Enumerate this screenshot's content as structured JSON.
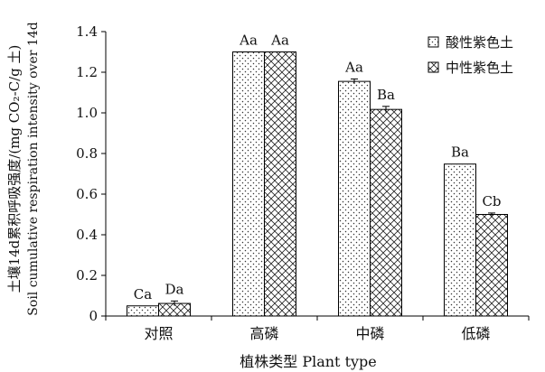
{
  "chart_data": {
    "type": "bar",
    "categories": [
      "对照",
      "高磷",
      "中磷",
      "低磷"
    ],
    "series": [
      {
        "name": "酸性紫色土",
        "values": [
          0.05,
          1.3,
          1.155,
          0.748
        ],
        "errors": [
          0.0,
          0.0,
          0.012,
          0.0
        ],
        "labels": [
          "Ca",
          "Aa",
          "Aa",
          "Ba"
        ],
        "pattern": "dots"
      },
      {
        "name": "中性紫色土",
        "values": [
          0.062,
          1.3,
          1.017,
          0.5
        ],
        "errors": [
          0.012,
          0.0,
          0.015,
          0.007
        ],
        "labels": [
          "Da",
          "Aa",
          "Ba",
          "Cb"
        ],
        "pattern": "crosshatch"
      }
    ],
    "xlabel": "植株类型 Plant type",
    "ylabel_cn": "土壤14d累积呼吸强度/(mg CO₂-C/g 土)",
    "ylabel_en": "Soil cumulative respiration intensity over 14d",
    "ylim": [
      0,
      1.4
    ],
    "yticks": [
      "0",
      "0.2",
      "0.4",
      "0.6",
      "0.8",
      "1.0",
      "1.2",
      "1.4"
    ],
    "legend_position": "top-right",
    "grid": false
  }
}
